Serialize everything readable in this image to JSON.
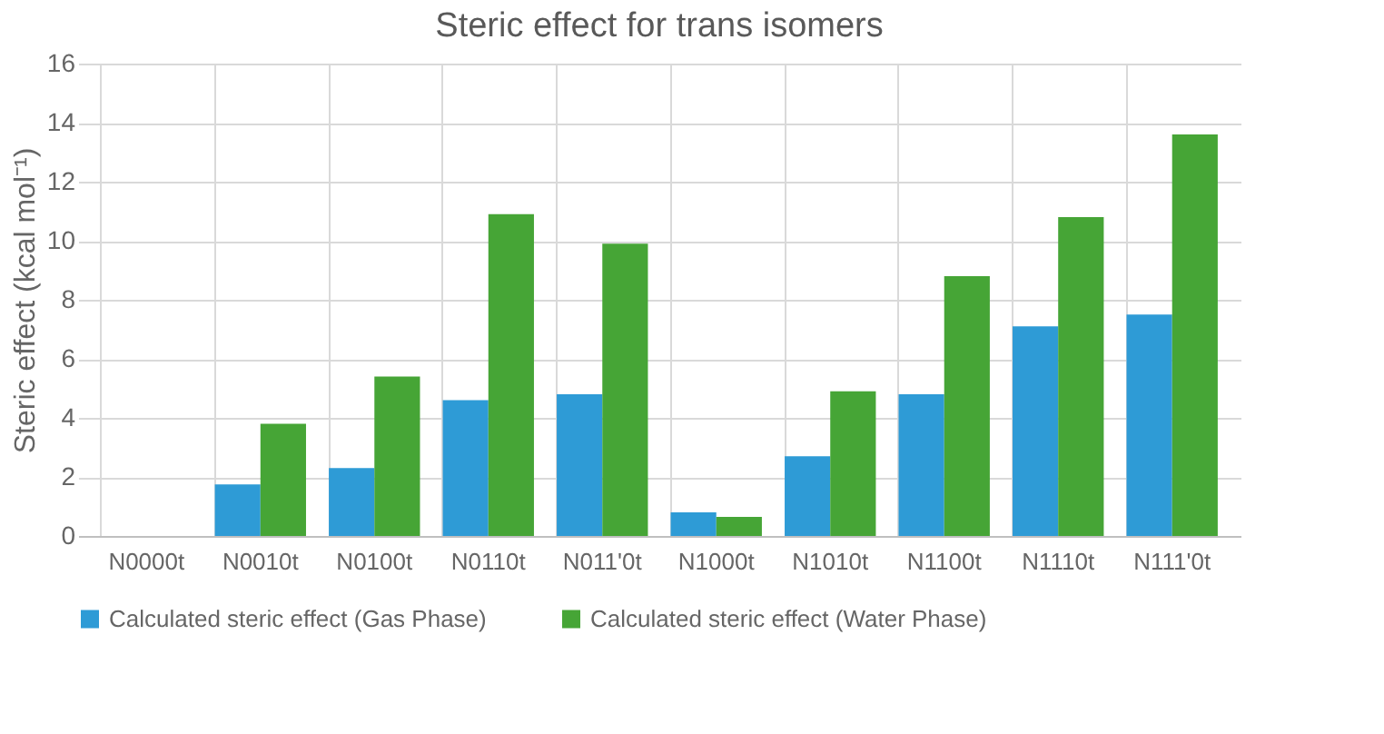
{
  "chart_data": {
    "type": "bar",
    "title": "Steric effect for trans isomers",
    "ylabel": "Steric effect (kcal mol⁻¹)",
    "categories": [
      "N0000t",
      "N0010t",
      "N0100t",
      "N0110t",
      "N011'0t",
      "N1000t",
      "N1010t",
      "N1100t",
      "N1110t",
      "N111'0t"
    ],
    "series": [
      {
        "name": "Calculated steric effect (Gas Phase)",
        "color": "#2e9bd6",
        "values": [
          0,
          1.75,
          2.3,
          4.6,
          4.8,
          0.8,
          2.7,
          4.8,
          7.1,
          7.5
        ]
      },
      {
        "name": "Calculated steric effect (Water Phase)",
        "color": "#46a536",
        "values": [
          0,
          3.8,
          5.4,
          10.9,
          9.9,
          0.65,
          4.9,
          8.8,
          10.8,
          13.6
        ]
      }
    ],
    "ylim": [
      0,
      16
    ],
    "yticks": [
      0,
      2,
      4,
      6,
      8,
      10,
      12,
      14,
      16
    ],
    "grid": true,
    "legend": "bottom"
  }
}
